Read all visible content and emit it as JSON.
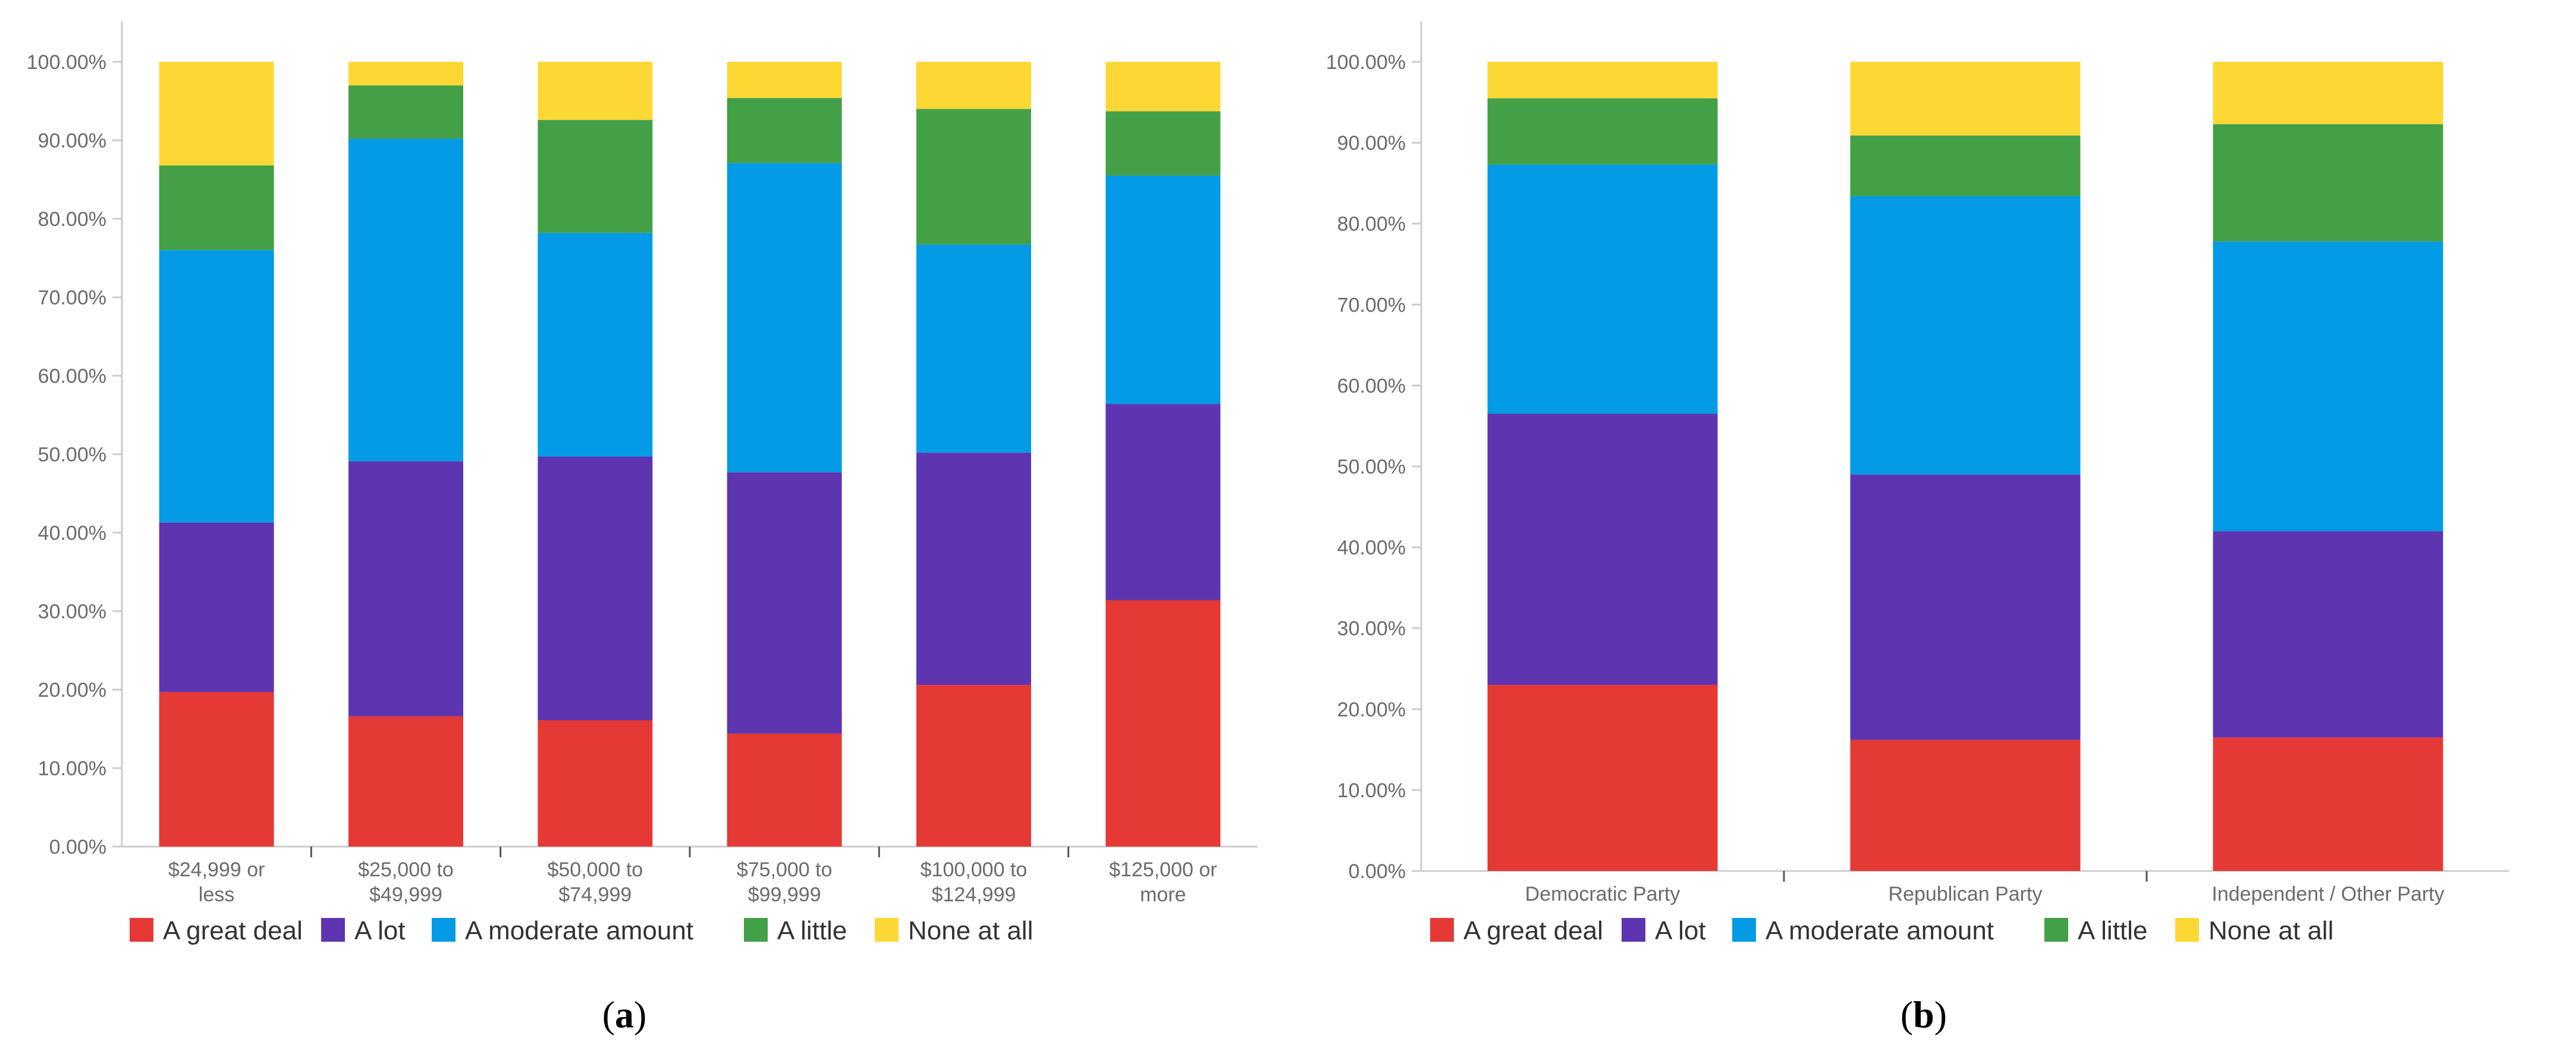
{
  "chart_data": [
    {
      "type": "bar",
      "stacked": true,
      "panel_label": "a",
      "categories": [
        "$24,999 or less",
        "$25,000 to $49,999",
        "$50,000 to $74,999",
        "$75,000 to $99,999",
        "$100,000 to $124,999",
        "$125,000 or more"
      ],
      "category_lines": [
        [
          "$24,999 or",
          "less"
        ],
        [
          "$25,000 to",
          "$49,999"
        ],
        [
          "$50,000 to",
          "$74,999"
        ],
        [
          "$75,000 to",
          "$99,999"
        ],
        [
          "$100,000 to",
          "$124,999"
        ],
        [
          "$125,000 or",
          "more"
        ]
      ],
      "series": [
        {
          "name": "A great deal",
          "color": "#e53935",
          "values": [
            19.7,
            16.6,
            16.1,
            14.4,
            20.6,
            31.4
          ]
        },
        {
          "name": "A lot",
          "color": "#5e35b1",
          "values": [
            21.6,
            32.5,
            33.6,
            33.3,
            29.6,
            25.0
          ]
        },
        {
          "name": "A moderate amount",
          "color": "#039be5",
          "values": [
            34.7,
            41.1,
            28.5,
            39.4,
            26.5,
            29.1
          ]
        },
        {
          "name": "A little",
          "color": "#43a047",
          "values": [
            10.8,
            6.8,
            14.4,
            8.3,
            17.3,
            8.2
          ]
        },
        {
          "name": "None at all",
          "color": "#fdd835",
          "values": [
            13.2,
            3.0,
            7.4,
            4.6,
            6.0,
            6.3
          ]
        }
      ],
      "y_ticks": [
        "0.00%",
        "10.00%",
        "20.00%",
        "30.00%",
        "40.00%",
        "50.00%",
        "60.00%",
        "70.00%",
        "80.00%",
        "90.00%",
        "100.00%"
      ],
      "ylim": [
        0,
        100
      ],
      "grid": false,
      "legend_position": "bottom"
    },
    {
      "type": "bar",
      "stacked": true,
      "panel_label": "b",
      "categories": [
        "Democratic Party",
        "Republican Party",
        "Independent / Other Party"
      ],
      "category_lines": [
        [
          "Democratic Party"
        ],
        [
          "Republican Party"
        ],
        [
          "Independent / Other Party"
        ]
      ],
      "series": [
        {
          "name": "A great deal",
          "color": "#e53935",
          "values": [
            23.0,
            16.2,
            16.5
          ]
        },
        {
          "name": "A lot",
          "color": "#5e35b1",
          "values": [
            33.5,
            32.8,
            25.5
          ]
        },
        {
          "name": "A moderate amount",
          "color": "#039be5",
          "values": [
            30.8,
            34.4,
            35.8
          ]
        },
        {
          "name": "A little",
          "color": "#43a047",
          "values": [
            8.2,
            7.5,
            14.5
          ]
        },
        {
          "name": "None at all",
          "color": "#fdd835",
          "values": [
            4.5,
            9.1,
            7.7
          ]
        }
      ],
      "y_ticks": [
        "0.00%",
        "10.00%",
        "20.00%",
        "30.00%",
        "40.00%",
        "50.00%",
        "60.00%",
        "70.00%",
        "80.00%",
        "90.00%",
        "100.00%"
      ],
      "ylim": [
        0,
        100
      ],
      "grid": false,
      "legend_position": "bottom"
    }
  ],
  "colors": {
    "axis": "#cccccc",
    "tick_text": "#6b6b6b",
    "legend_text": "#333333"
  }
}
